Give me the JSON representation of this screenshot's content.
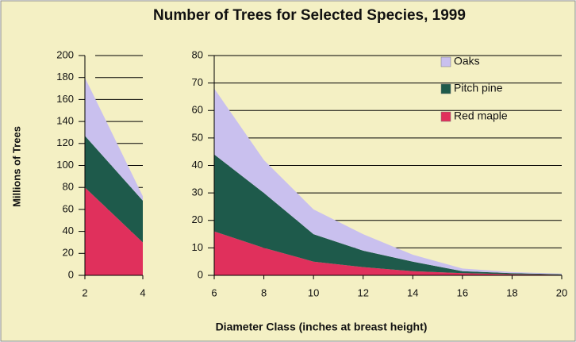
{
  "title": "Number of Trees for Selected Species, 1999",
  "y_label": "Millions of Trees",
  "x_label": "Diameter Class (inches at breast height)",
  "chart_data": [
    {
      "type": "stacked_area",
      "x": [
        2,
        4
      ],
      "xlim": [
        2,
        4
      ],
      "xticks": [
        2,
        4
      ],
      "ylim": [
        0,
        200
      ],
      "yticks": [
        0,
        20,
        40,
        60,
        80,
        100,
        120,
        140,
        160,
        180,
        200
      ],
      "grid": true,
      "series": [
        {
          "name": "Red maple",
          "color": "#e0305c",
          "values": [
            80,
            30
          ]
        },
        {
          "name": "Pitch pine",
          "color": "#1e5a4b",
          "values": [
            47,
            38
          ]
        },
        {
          "name": "Oaks",
          "color": "#c9c0ee",
          "values": [
            53,
            4
          ]
        }
      ]
    },
    {
      "type": "stacked_area",
      "x": [
        6,
        8,
        10,
        12,
        14,
        16,
        18,
        20
      ],
      "xlim": [
        6,
        20
      ],
      "xticks": [
        6,
        8,
        10,
        12,
        14,
        16,
        18,
        20
      ],
      "ylim": [
        0,
        80
      ],
      "yticks": [
        0,
        10,
        20,
        30,
        40,
        50,
        60,
        70,
        80
      ],
      "grid": true,
      "legend": "upper right",
      "series": [
        {
          "name": "Red maple",
          "color": "#e0305c",
          "values": [
            16,
            10,
            5,
            3,
            1.5,
            0.8,
            0.4,
            0.2
          ]
        },
        {
          "name": "Pitch pine",
          "color": "#1e5a4b",
          "values": [
            28,
            20,
            10,
            6,
            3.5,
            0.7,
            0.4,
            0.2
          ]
        },
        {
          "name": "Oaks",
          "color": "#c9c0ee",
          "values": [
            24,
            12,
            9,
            6,
            2.5,
            1,
            0.4,
            0.2
          ]
        }
      ]
    }
  ]
}
